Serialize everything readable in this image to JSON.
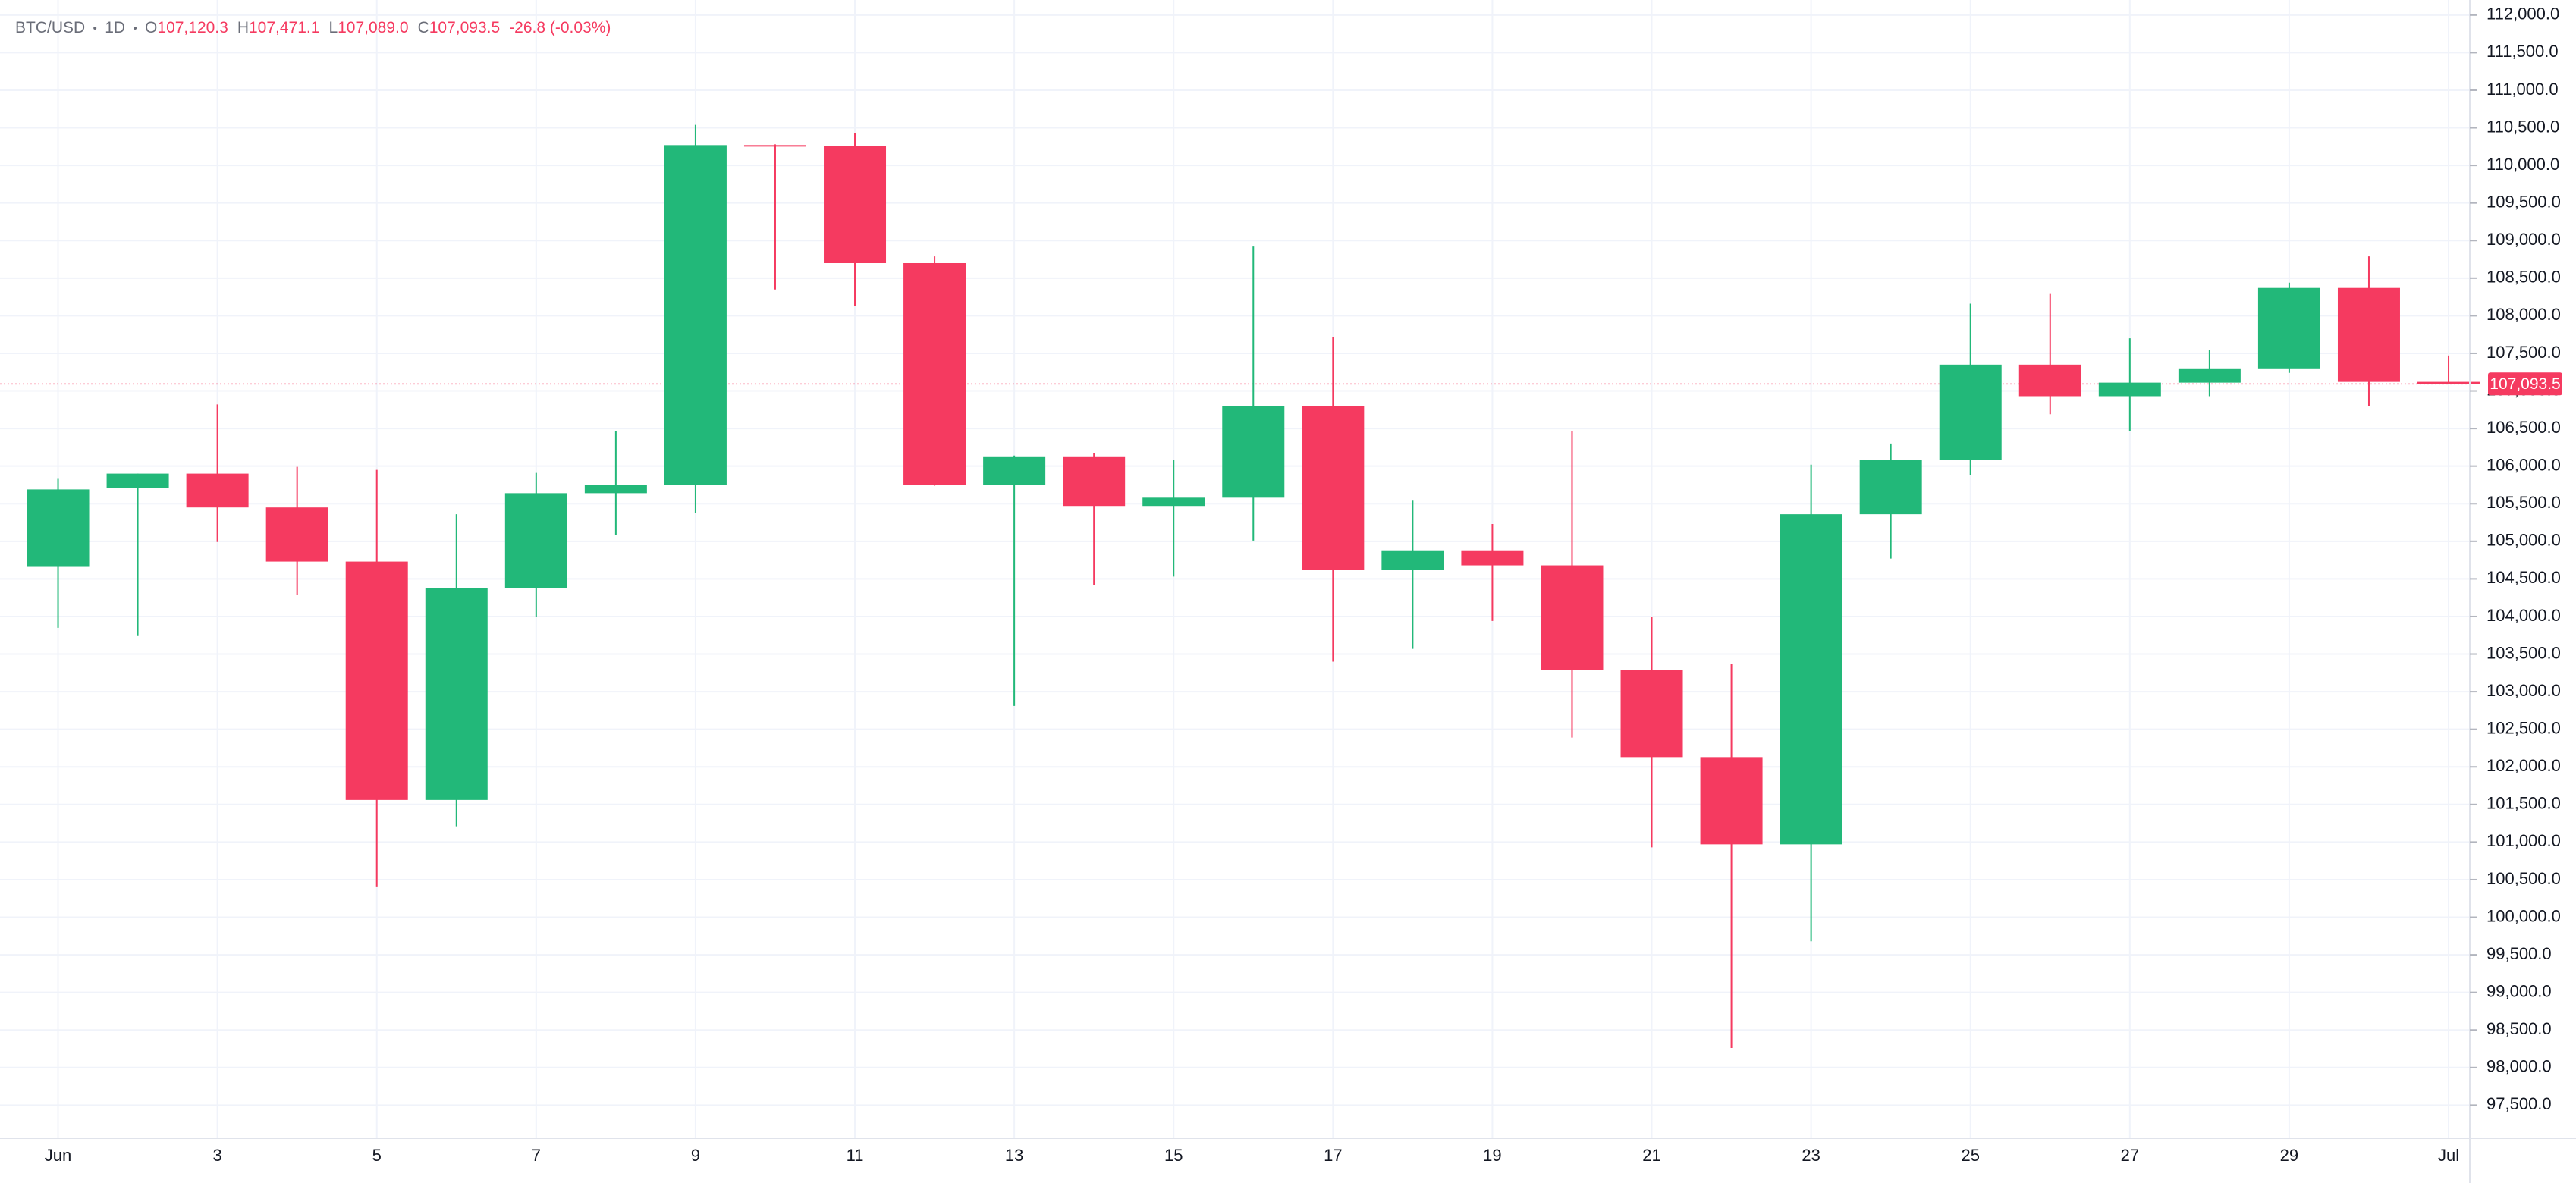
{
  "header": {
    "symbol": "BTC/USD",
    "interval": "1D",
    "fields": [
      {
        "key": "O",
        "value": "107,120.3"
      },
      {
        "key": "H",
        "value": "107,471.1"
      },
      {
        "key": "L",
        "value": "107,089.0"
      },
      {
        "key": "C",
        "value": "107,093.5"
      }
    ],
    "change": "-26.8 (-0.03%)"
  },
  "chart_data": {
    "type": "candlestick",
    "categories": [
      "Jun",
      null,
      "3",
      null,
      "5",
      null,
      "7",
      null,
      "9",
      null,
      "11",
      null,
      "13",
      null,
      "15",
      null,
      "17",
      null,
      "19",
      null,
      "21",
      null,
      "23",
      null,
      "25",
      null,
      "27",
      null,
      "29",
      null,
      "Jul"
    ],
    "open": [
      104660,
      105710,
      105900,
      105450,
      104730,
      101560,
      104380,
      105640,
      105750,
      110270,
      110260,
      108700,
      105750,
      106130,
      105470,
      105580,
      106800,
      104620,
      104880,
      104680,
      103290,
      102130,
      100970,
      105360,
      106080,
      107350,
      106930,
      107110,
      107300,
      108370,
      107120.3
    ],
    "high": [
      105840,
      105900,
      106820,
      105990,
      105950,
      105360,
      105910,
      106470,
      110540,
      110280,
      110430,
      108790,
      106140,
      106170,
      106080,
      108920,
      107720,
      105540,
      105230,
      106470,
      103990,
      103370,
      106020,
      106300,
      108160,
      108290,
      107700,
      107550,
      108440,
      108790,
      107471.1
    ],
    "low": [
      103850,
      103740,
      104990,
      104290,
      100400,
      101210,
      103990,
      105080,
      105380,
      108350,
      108130,
      105740,
      102810,
      104420,
      104530,
      105010,
      103400,
      103570,
      103940,
      102390,
      100930,
      98260,
      99680,
      104770,
      105880,
      106690,
      106470,
      106930,
      107240,
      106800,
      107089.0
    ],
    "close": [
      105690,
      105900,
      105450,
      104730,
      101560,
      104380,
      105640,
      105750,
      110270,
      110260,
      108700,
      105750,
      106130,
      105470,
      105580,
      106800,
      104620,
      104880,
      104680,
      103290,
      102130,
      100970,
      105360,
      106080,
      107350,
      106930,
      107110,
      107300,
      108370,
      107120,
      107093.5
    ],
    "up_color": "#22b879",
    "down_color": "#f53a60",
    "grid": true,
    "ylim": [
      97060,
      112200
    ],
    "yticks": [
      {
        "value": 97500,
        "label": "97,500.0"
      },
      {
        "value": 98000,
        "label": "98,000.0"
      },
      {
        "value": 98500,
        "label": "98,500.0"
      },
      {
        "value": 99000,
        "label": "99,000.0"
      },
      {
        "value": 99500,
        "label": "99,500.0"
      },
      {
        "value": 100000,
        "label": "100,000.0"
      },
      {
        "value": 100500,
        "label": "100,500.0"
      },
      {
        "value": 101000,
        "label": "101,000.0"
      },
      {
        "value": 101500,
        "label": "101,500.0"
      },
      {
        "value": 102000,
        "label": "102,000.0"
      },
      {
        "value": 102500,
        "label": "102,500.0"
      },
      {
        "value": 103000,
        "label": "103,000.0"
      },
      {
        "value": 103500,
        "label": "103,500.0"
      },
      {
        "value": 104000,
        "label": "104,000.0"
      },
      {
        "value": 104500,
        "label": "104,500.0"
      },
      {
        "value": 105000,
        "label": "105,000.0"
      },
      {
        "value": 105500,
        "label": "105,500.0"
      },
      {
        "value": 106000,
        "label": "106,000.0"
      },
      {
        "value": 106500,
        "label": "106,500.0"
      },
      {
        "value": 107000,
        "label": "107,000.0"
      },
      {
        "value": 107500,
        "label": "107,500.0"
      },
      {
        "value": 108000,
        "label": "108,000.0"
      },
      {
        "value": 108500,
        "label": "108,500.0"
      },
      {
        "value": 109000,
        "label": "109,000.0"
      },
      {
        "value": 109500,
        "label": "109,500.0"
      },
      {
        "value": 110000,
        "label": "110,000.0"
      },
      {
        "value": 110500,
        "label": "110,500.0"
      },
      {
        "value": 111000,
        "label": "111,000.0"
      },
      {
        "value": 111500,
        "label": "111,500.0"
      },
      {
        "value": 112000,
        "label": "112,000.0"
      }
    ],
    "last_price": {
      "value": 107093.5,
      "label": "107,093.5"
    }
  }
}
